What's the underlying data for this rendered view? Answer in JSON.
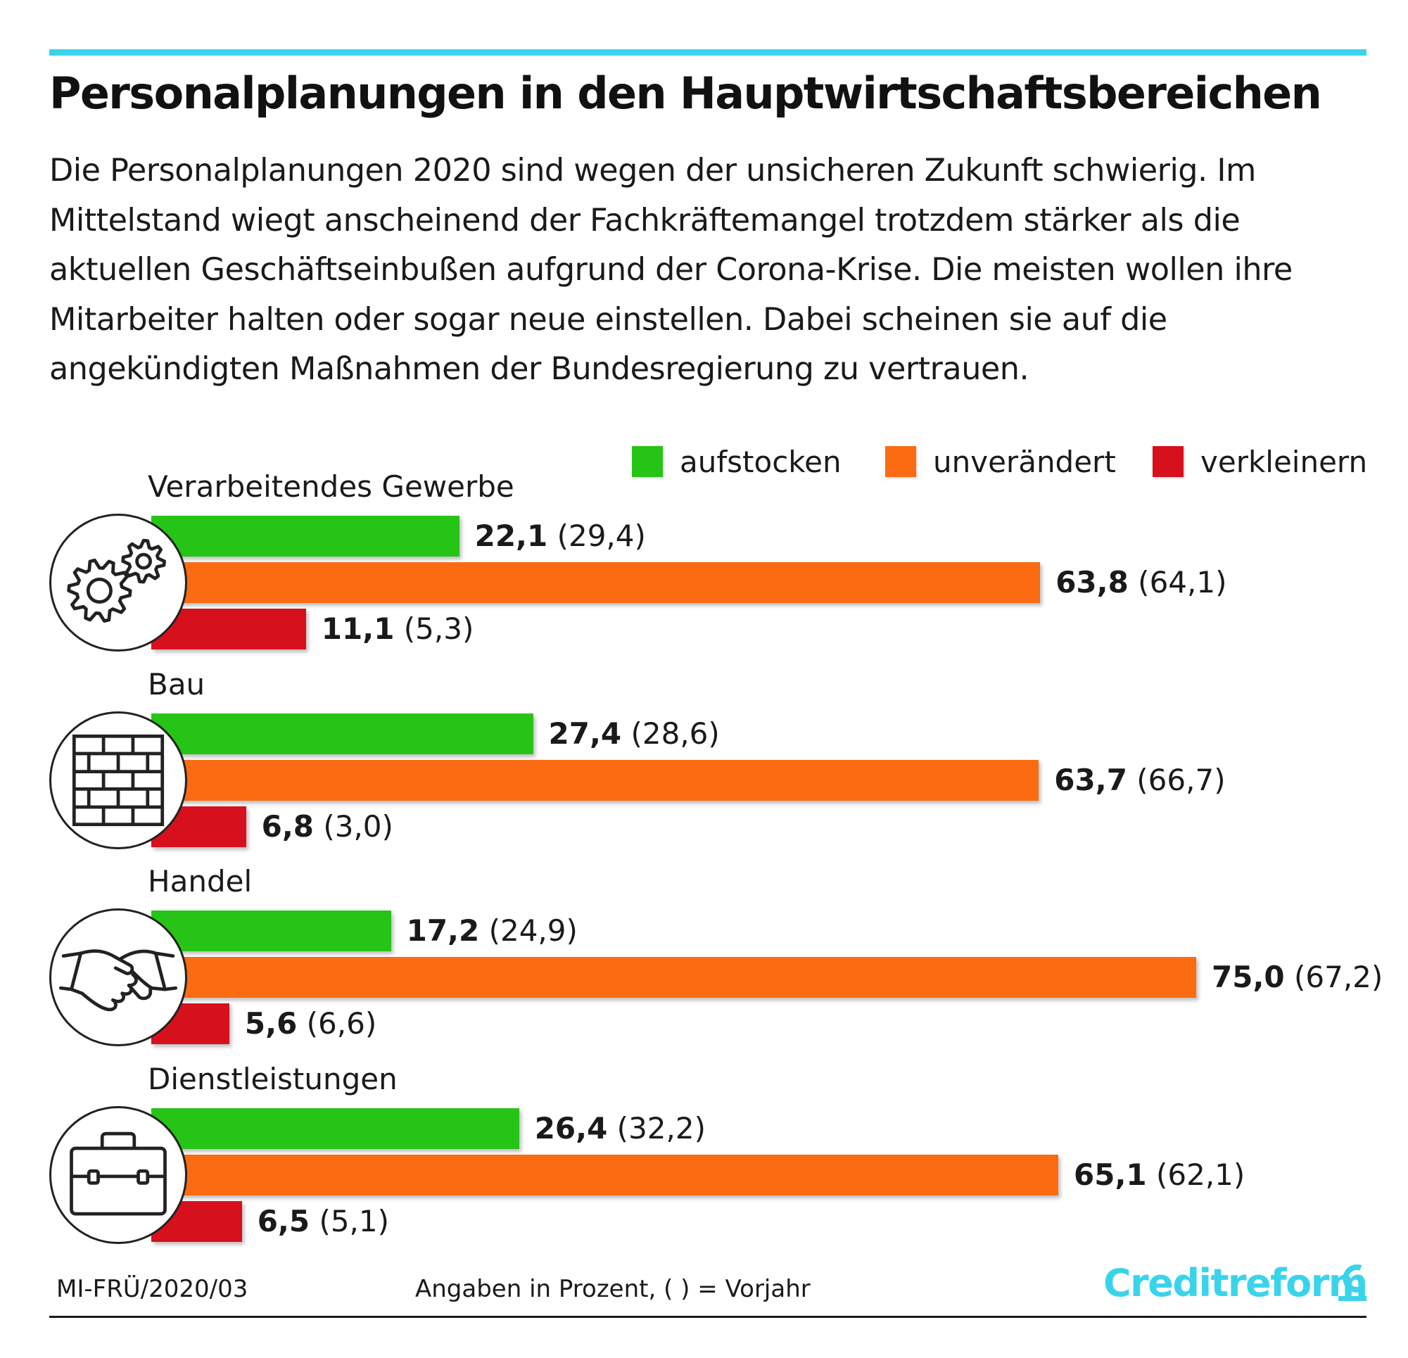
{
  "title": "Personalplanungen in den Hauptwirtschaftsbereichen",
  "subtitle": "Die Personalplanungen 2020 sind wegen der unsicheren Zukunft schwierig. Im Mittelstand wiegt anscheinend der Fachkräftemangel trotzdem stärker als die aktuellen Geschäftseinbußen aufgrund der Corona-Krise. Die meisten wollen ihre Mitarbeiter halten oder sogar neue einstellen. Dabei scheinen sie auf die angekündigten Maßnahmen der Bundesregierung zu vertrauen.",
  "legend": [
    {
      "label": "aufstocken",
      "color": "#26c416"
    },
    {
      "label": "unverändert",
      "color": "#fb6b12"
    },
    {
      "label": "verkleinern",
      "color": "#d7101e"
    }
  ],
  "chart_data": {
    "type": "bar",
    "orientation": "horizontal",
    "title": "Personalplanungen in den Hauptwirtschaftsbereichen",
    "unit_note": "Angaben in Prozent,  ( ) = Vorjahr",
    "legend_position": "top-right",
    "grid": false,
    "categories": [
      "Verarbeitendes Gewerbe",
      "Bau",
      "Handel",
      "Dienstleistungen"
    ],
    "icons": [
      "gears-icon",
      "brick-wall-icon",
      "handshake-icon",
      "briefcase-icon"
    ],
    "series": [
      {
        "name": "aufstocken",
        "color": "#26c416",
        "values": [
          22.1,
          27.4,
          17.2,
          26.4
        ],
        "labels": [
          "22,1",
          "27,4",
          "17,2",
          "26,4"
        ],
        "prev_labels": [
          "(29,4)",
          "(28,6)",
          "(24,9)",
          "(32,2)"
        ]
      },
      {
        "name": "unverändert",
        "color": "#fb6b12",
        "values": [
          63.8,
          63.7,
          75.0,
          65.1
        ],
        "labels": [
          "63,8",
          "63,7",
          "75,0",
          "65,1"
        ],
        "prev_labels": [
          "(64,1)",
          "(66,7)",
          "(67,2)",
          "(62,1)"
        ]
      },
      {
        "name": "verkleinern",
        "color": "#d7101e",
        "values": [
          11.1,
          6.8,
          5.6,
          6.5
        ],
        "labels": [
          "11,1",
          "6,8",
          "5,6",
          "6,5"
        ],
        "prev_labels": [
          "(5,3)",
          "(3,0)",
          "(6,6)",
          "(5,1)"
        ]
      }
    ]
  },
  "footer": {
    "code": "MI-FRÜ/2020/03",
    "note": "Angaben in Prozent,  ( ) = Vorjahr",
    "brand": "Creditreform"
  }
}
